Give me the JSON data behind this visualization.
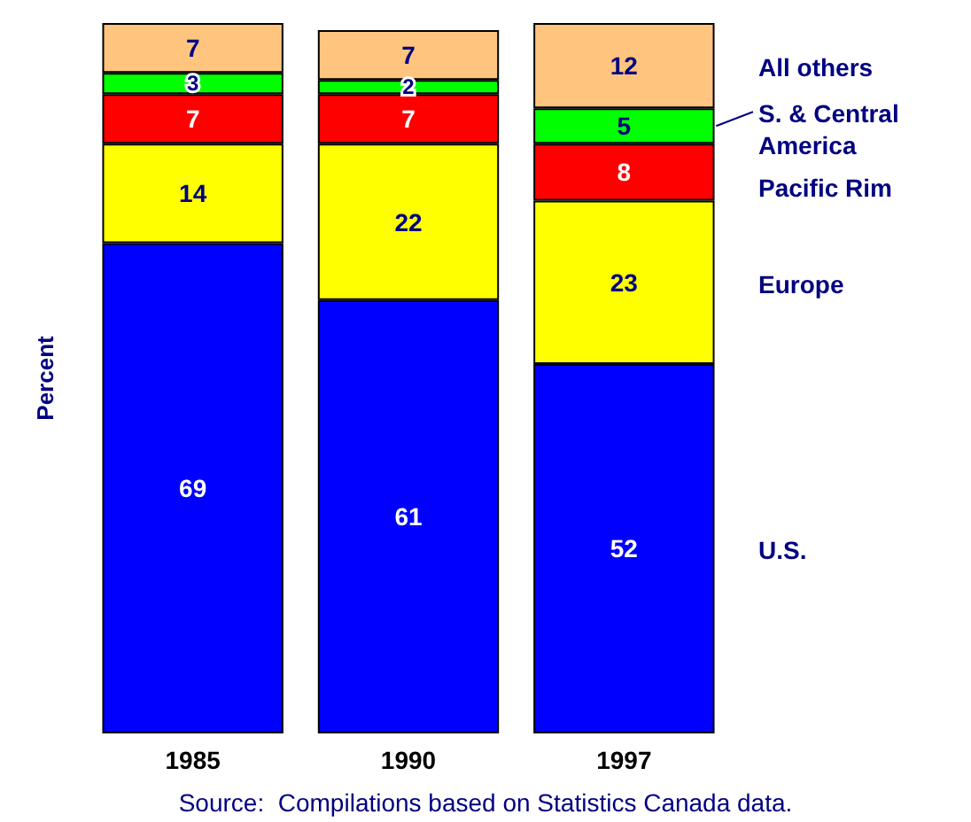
{
  "chart_data": {
    "type": "bar",
    "stacked": true,
    "ylabel": "Percent",
    "categories": [
      "1985",
      "1990",
      "1997"
    ],
    "series": [
      {
        "name": "U.S.",
        "color": "#0000ff",
        "values": [
          69,
          61,
          52
        ]
      },
      {
        "name": "Europe",
        "color": "#ffff00",
        "values": [
          14,
          22,
          23
        ]
      },
      {
        "name": "Pacific Rim",
        "color": "#ff0000",
        "values": [
          7,
          7,
          8
        ]
      },
      {
        "name": "S. & Central America",
        "color": "#00ff00",
        "values": [
          3,
          2,
          5
        ]
      },
      {
        "name": "All others",
        "color": "#ffc57f",
        "values": [
          7,
          7,
          12
        ]
      }
    ],
    "data_labels": true,
    "legend": "right",
    "grid": false,
    "annotations": [
      "Source:  Compilations based on Statistics Canada data."
    ]
  }
}
